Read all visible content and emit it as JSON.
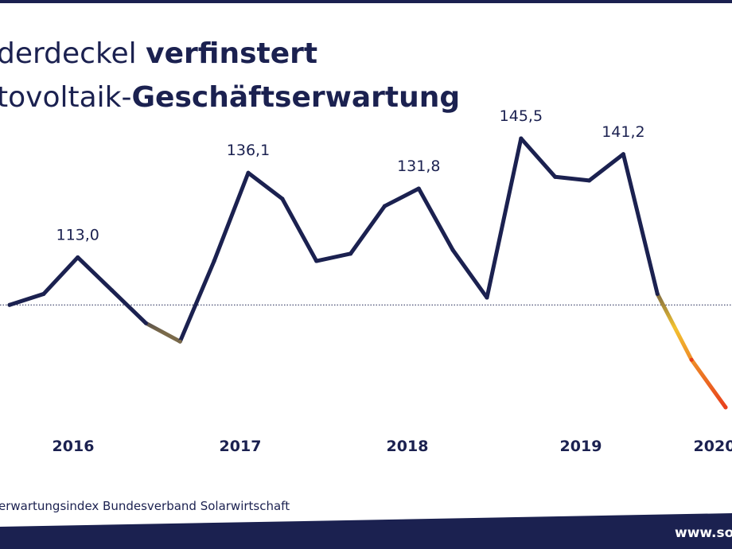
{
  "title": {
    "line1_normal": "derdeckel ",
    "line1_bold": "verfinstert",
    "line2_normal": "tovoltaik-",
    "line2_bold": "Geschäftserwartung"
  },
  "source": "erwartungsindex Bundesverband Solarwirtschaft",
  "footer": {
    "url": "www.sola"
  },
  "colors": {
    "line": "#1b2150",
    "gradient_mid": "#f2c230",
    "gradient_end": "#e8401c",
    "text": "#1b2150",
    "band": "#1b2150",
    "background": "#ffffff"
  },
  "chart_data": {
    "type": "line",
    "title": "",
    "xlabel": "",
    "ylabel": "",
    "ylim": [
      70,
      160
    ],
    "baseline": 100,
    "x_ticks": [
      "2016",
      "2017",
      "2018",
      "2019",
      "2020"
    ],
    "series": [
      {
        "values": [
          100,
          103,
          113,
          104,
          95,
          90,
          112,
          136.1,
          129,
          112,
          114,
          127,
          131.8,
          115,
          102,
          145.5,
          135,
          134,
          141.2,
          103,
          85,
          72
        ]
      }
    ],
    "point_labels": [
      {
        "index": 2,
        "text": "113,0"
      },
      {
        "index": 7,
        "text": "136,1"
      },
      {
        "index": 12,
        "text": "131,8"
      },
      {
        "index": 15,
        "text": "145,5"
      },
      {
        "index": 18,
        "text": "141,2"
      }
    ]
  }
}
